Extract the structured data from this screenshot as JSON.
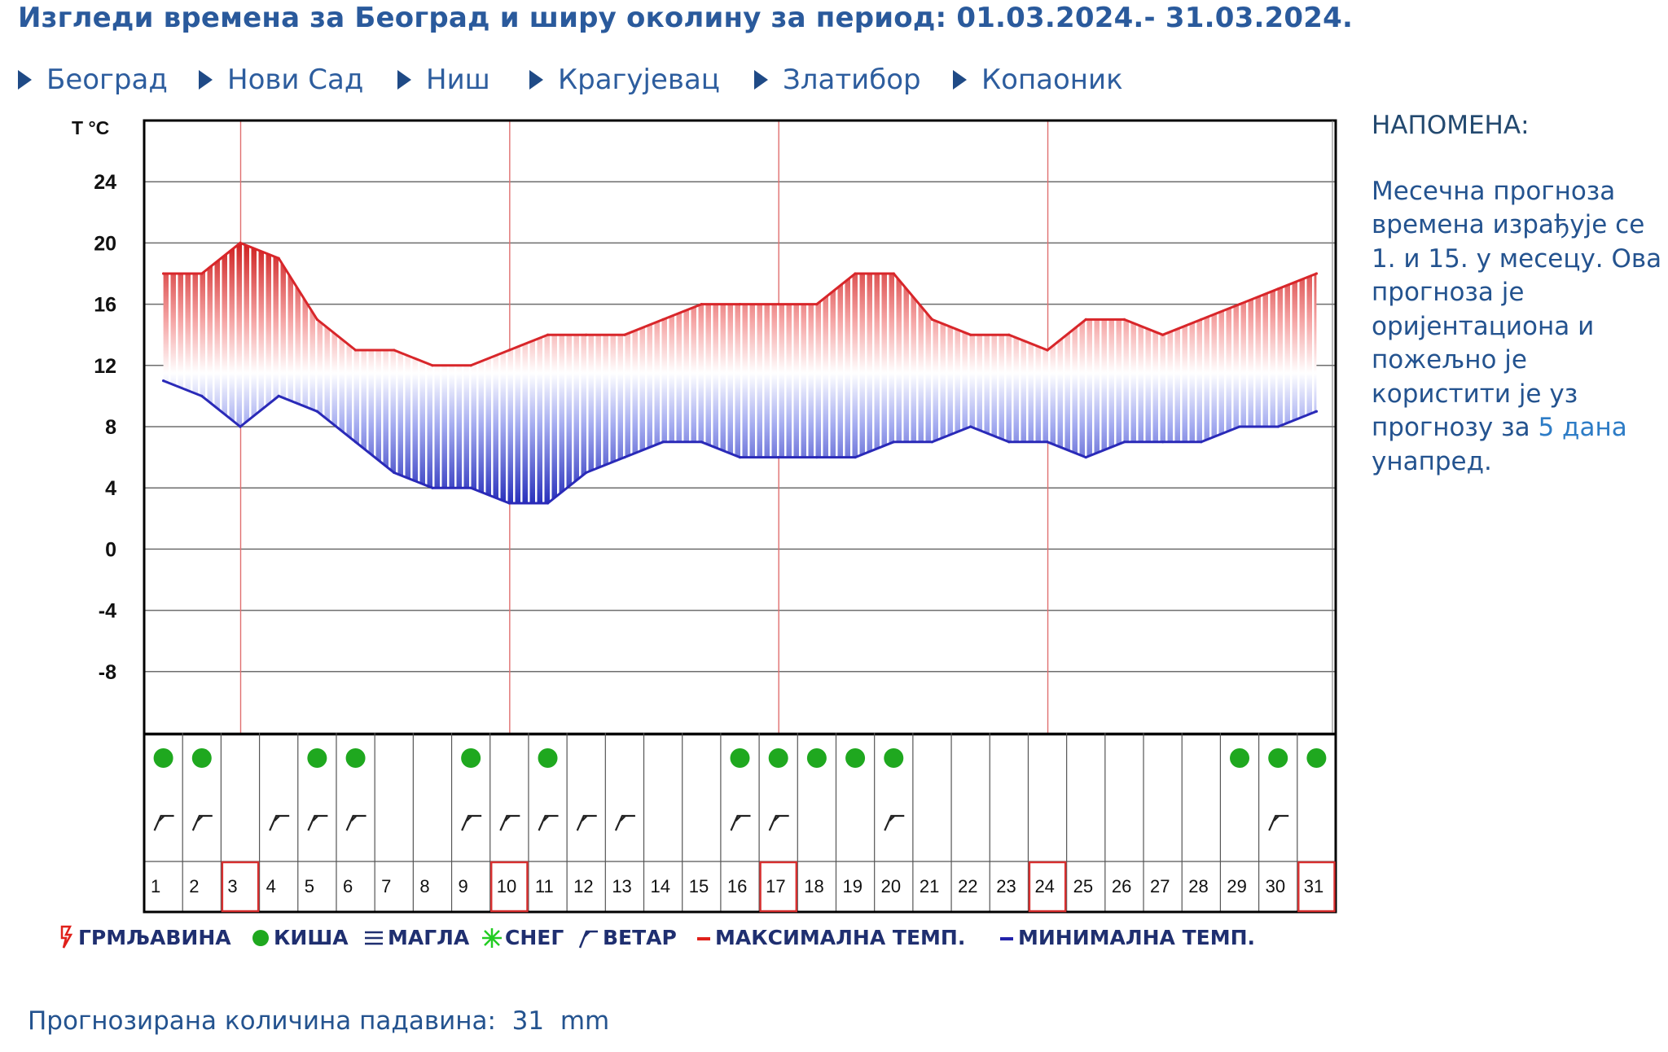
{
  "title": "Изгледи времена за Београд и ширу околину за период: 01.03.2024.- 31.03.2024.",
  "nav": [
    {
      "label": "Београд"
    },
    {
      "label": "Нови Сад"
    },
    {
      "label": "Ниш"
    },
    {
      "label": "Крагујевац"
    },
    {
      "label": "Златибор"
    },
    {
      "label": "Копаоник"
    }
  ],
  "note": {
    "title": "НАПОМЕНА:",
    "text": "Месечна прогноза времена израђује се 1. и 15. у месецу. Ова прогноза је оријентациона и пожељно је користити је уз прогнозу за ",
    "link": "5 дана",
    "text_end": " унапред."
  },
  "legend": [
    {
      "label": "ГРМЉАВИНА",
      "icon": "thunder-icon",
      "color": "#e0201a"
    },
    {
      "label": "КИША",
      "icon": "rain-dot-icon",
      "color": "#1fa81f"
    },
    {
      "label": "МАГЛА",
      "icon": "fog-icon",
      "color": "#1f2f70"
    },
    {
      "label": "СНЕГ",
      "icon": "snow-icon",
      "color": "#22cc22"
    },
    {
      "label": "ВЕТАР",
      "icon": "wind-icon",
      "color": "#1f2f70"
    },
    {
      "label": "МАКСИМАЛНА ТЕМП.",
      "icon": "red-line",
      "color": "#e0201a"
    },
    {
      "label": "МИНИМАЛНА ТЕМП.",
      "icon": "blue-line",
      "color": "#2222aa"
    }
  ],
  "precipitation": {
    "label": "Прогнозирана количина падавина:",
    "value": "31",
    "unit": "mm"
  },
  "chart_data": {
    "type": "area",
    "ylabel": "T °C",
    "yticks": [
      24,
      20,
      16,
      12,
      8,
      4,
      0,
      -4,
      -8
    ],
    "ylim": [
      -12,
      28
    ],
    "grid": true,
    "x": [
      1,
      2,
      3,
      4,
      5,
      6,
      7,
      8,
      9,
      10,
      11,
      12,
      13,
      14,
      15,
      16,
      17,
      18,
      19,
      20,
      21,
      22,
      23,
      24,
      25,
      26,
      27,
      28,
      29,
      30,
      31
    ],
    "x_labels": [
      "1",
      "2",
      "3",
      "4",
      "5",
      "6",
      "7",
      "8",
      "9",
      "10",
      "11",
      "12",
      "13",
      "14",
      "15",
      "16",
      "17",
      "18",
      "19",
      "20",
      "21",
      "22",
      "23",
      "24",
      "25",
      "26",
      "27",
      "28",
      "29",
      "30",
      "31"
    ],
    "sundays": [
      3,
      10,
      17,
      24,
      31
    ],
    "series": [
      {
        "name": "МАКСИМАЛНА ТЕМП.",
        "color": "#d8262a",
        "values": [
          18,
          18,
          20,
          19,
          15,
          13,
          13,
          12,
          12,
          13,
          14,
          14,
          14,
          15,
          16,
          16,
          16,
          16,
          18,
          18,
          15,
          14,
          14,
          13,
          15,
          15,
          14,
          15,
          16,
          17,
          18
        ]
      },
      {
        "name": "МИНИМАЛНА ТЕМП.",
        "color": "#2a2ab8",
        "values": [
          11,
          10,
          8,
          10,
          9,
          7,
          5,
          4,
          4,
          3,
          3,
          5,
          6,
          7,
          7,
          6,
          6,
          6,
          6,
          7,
          7,
          8,
          7,
          7,
          6,
          7,
          7,
          7,
          8,
          8,
          9
        ]
      }
    ],
    "rain": [
      1,
      2,
      5,
      6,
      9,
      11,
      16,
      17,
      18,
      19,
      20,
      29,
      30,
      31
    ],
    "wind": [
      1,
      2,
      4,
      5,
      6,
      9,
      10,
      11,
      12,
      13,
      16,
      17,
      20,
      30
    ]
  }
}
